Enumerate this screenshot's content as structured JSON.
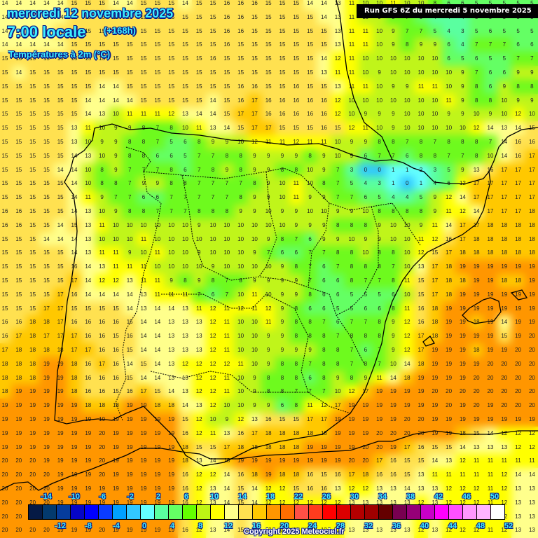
{
  "header": {
    "date": "mercredi 12 novembre 2025",
    "time": "7:00 locale",
    "offset": "(+168h)",
    "variable": "Températures à 2m (°C)",
    "run": "Run GFS 6Z du mercredi 5 novembre 2025"
  },
  "footer": {
    "copyright": "Copyright 2025 Meteociel.fr"
  },
  "legend": {
    "top_labels": [
      "-14",
      "-10",
      "-6",
      "-2",
      "2",
      "6",
      "10",
      "14",
      "18",
      "22",
      "26",
      "30",
      "34",
      "38",
      "42",
      "46",
      "50"
    ],
    "bottom_labels": [
      "-12",
      "-8",
      "-4",
      "0",
      "4",
      "8",
      "12",
      "16",
      "20",
      "24",
      "28",
      "32",
      "36",
      "40",
      "44",
      "48",
      "52"
    ],
    "colors": [
      "#051a45",
      "#033a6e",
      "#053c9c",
      "#0505c8",
      "#0000ff",
      "#0a3cff",
      "#00a0ff",
      "#32c8ff",
      "#64ffff",
      "#5affa0",
      "#64ff64",
      "#64ff00",
      "#bef514",
      "#ffff00",
      "#ffff8c",
      "#ffe150",
      "#ffc800",
      "#ff9600",
      "#ff6e00",
      "#ff5046",
      "#ff3c1e",
      "#ff0000",
      "#dc0000",
      "#b40000",
      "#a00000",
      "#640000",
      "#780050",
      "#960078",
      "#c800c8",
      "#ff00ff",
      "#ff50ff",
      "#ff96ff",
      "#ffb4ff",
      "#ffffff"
    ]
  },
  "scale": {
    "stops": [
      {
        "max": 4,
        "color": "#5affa0"
      },
      {
        "max": 6,
        "color": "#64ff64"
      },
      {
        "max": 8,
        "color": "#6efa1e"
      },
      {
        "max": 10,
        "color": "#c0f51a"
      },
      {
        "max": 12,
        "color": "#ffff00"
      },
      {
        "max": 14,
        "color": "#ffff8c"
      },
      {
        "max": 16,
        "color": "#ffe150"
      },
      {
        "max": 18,
        "color": "#ffc800"
      },
      {
        "max": 20,
        "color": "#ff9600"
      },
      {
        "max": 99,
        "color": "#ff6e00"
      }
    ],
    "cold": [
      {
        "max": 0,
        "color": "#32c8ff"
      },
      {
        "max": 2,
        "color": "#64ffff"
      }
    ]
  },
  "grid": {
    "origin_x": 0,
    "origin_y": 0,
    "step": 19.8,
    "rows": [
      "14 14 14 14 14 15 15 15 14 14 15 15 15 14 15 15 16 16 16 15 15 15 14 14 13 11 10 10 11 10 10 8 6 6 5 5 5 5 5",
      "14 14 14 14 14 15 15 15 15 15 15 15 15 15 15 15 16 16 15 15 15 15 15 14 13 11 10 9 8 7 5 4 4 4 5 5 5 5 5",
      "14 14 14 14 15 15 15 15 15 15 15 15 15 15 15 15 16 16 15 15 15 15 15 15 13 11 11 10 9 7 7 5 4 3 5 6 5 5 5",
      "14 14 14 14 14 15 15 15 15 15 15 15 15 15 15 15 16 15 15 15 15 15 15 15 13 11 11 10 9 8 9 9 6 4 7 7 7 6 6",
      "15 15 15 15 15 15 15 15 15 15 15 15 15 15 15 16 15 15 15 15 15 15 15 14 12 11 10 10 10 10 10 10 6 5 6 5 5 7 7",
      "15 14 15 15 15 15 15 15 15 15 15 15 15 15 15 15 15 15 15 15 15 15 15 13 11 11 10 9 10 10 10 10 10 9 7 6 6 9 9",
      "15 15 15 15 15 15 15 14 14 15 15 15 15 15 15 15 15 16 16 15 15 16 15 15 13 11 11 10 9 9 11 11 10 9 8 6 9 8 8",
      "15 15 15 15 15 15 14 14 14 14 15 15 15 15 15 14 15 16 17 16 16 16 16 16 12 10 10 10 10 10 10 10 11 9 8 8 10 9 9",
      "15 15 15 15 15 15 14 13 10 11 11 11 12 13 14 14 15 17 17 16 16 16 16 16 12 10 9 9 9 10 10 10 9 9 10 9 10 12 10",
      "15 15 15 15 15 13 11 10 9 9 8 7 8 10 11 13 14 15 17 17 15 15 15 16 15 12 11 10 9 10 10 10 10 10 12 14 13 14 15",
      "15 15 15 15 15 13 10 9 9 8 8 7 5 6 8 9 9 10 12 11 11 12 11 11 10 9 9 8 8 7 8 7 8 8 8 7 14 16 16",
      "15 15 15 15 15 14 13 10 9 8 8 6 6 5 7 7 8 8 9 9 9 9 8 9 10 9 6 7 7 6 8 8 7 7 8 10 14 16 17",
      "15 15 15 15 14 14 10 8 9 7 7 7 8 6 7 8 9 8 9 9 8 8 10 9 7 3 0 0 1 1 2 3 5 9 13 16 17 17 17",
      "15 15 15 15 15 14 10 8 8 7 9 9 8 8 7 7 7 7 8 9 10 11 10 8 7 5 4 3 1 0 1 4 6 12 17 17 17 17 17",
      "15 15 15 15 15 14 11 9 7 7 6 6 7 7 7 7 7 8 9 9 10 11 9 9 7 7 6 5 4 4 5 9 12 14 17 17 17 17 17",
      "16 16 15 15 15 14 13 10 9 8 8 7 7 7 8 8 8 9 9 10 9 9 10 10 9 9 10 8 8 8 8 9 11 12 14 17 17 17 18",
      "16 16 15 15 14 15 13 11 10 10 10 10 10 10 9 10 10 10 10 10 10 9 9 9 8 8 8 9 10 10 9 11 14 17 17 18 18 18 18",
      "15 15 15 14 14 14 13 10 10 10 11 10 10 10 10 10 10 10 10 9 8 7 6 9 9 10 9 9 10 10 11 12 16 17 18 18 18 18 18",
      "15 15 15 15 15 14 13 11 11 9 10 11 10 10 9 10 10 10 9 7 6 6 7 7 8 8 10 8 8 10 12 15 17 18 18 18 18 18 18",
      "15 15 15 15 15 16 14 13 11 11 11 10 10 10 10 9 10 10 10 10 9 8 7 6 7 8 8 8 7 10 13 17 18 19 19 19 19 19 19",
      "15 15 15 15 15 17 14 12 12 13 11 11 9 8 9 8 7 8 9 9 9 9 7 6 6 8 7 7 8 11 15 17 18 18 19 19 18 18 19",
      "15 15 15 15 17 16 14 14 14 14 13 11 11 11 7 6 7 10 11 10 9 9 8 6 6 5 5 5 6 10 15 17 18 19 19 19 19 19 19",
      "15 15 15 17 17 15 15 15 15 14 13 14 14 13 11 12 11 12 11 12 9 8 6 6 5 5 6 6 8 11 16 18 19 19 19 19 19 19 19",
      "16 16 18 18 17 16 16 16 16 15 14 14 13 13 13 12 11 10 10 11 9 8 8 7 6 7 7 8 9 12 16 18 19 19 18 19 14 19 19",
      "16 17 18 17 17 17 16 16 15 16 14 14 13 13 13 12 11 10 10 9 9 8 8 8 7 8 8 8 9 12 17 18 19 19 19 19 15 19 20",
      "17 18 18 18 18 17 17 16 16 15 14 14 13 13 13 12 11 10 10 9 9 9 9 8 8 7 6 7 9 12 17 19 19 19 18 19 19 20 20",
      "18 18 18 19 19 18 16 17 16 14 15 14 13 12 12 12 12 11 10 9 8 8 7 8 8 7 8 7 10 14 18 19 19 19 19 20 20 20 20",
      "18 18 18 19 19 18 16 16 16 15 14 14 13 13 12 12 11 10 9 8 8 8 6 8 9 8 9 11 14 18 19 19 19 19 20 20 20 20 20",
      "18 19 19 19 19 18 16 16 15 16 17 15 14 13 12 12 11 10 9 8 8 7 7 7 10 12 17 19 19 19 19 20 20 20 20 20 20 20 20",
      "19 19 19 19 19 19 18 18 18 19 19 18 18 14 13 12 10 10 9 9 6 8 11 12 17 19 19 19 19 19 19 19 20 19 20 19 20 20 20",
      "19 19 19 19 19 19 19 19 19 19 19 19 19 15 12 10 9 12 13 16 15 15 17 17 19 19 19 19 19 20 20 19 19 19 19 19 19 19 19",
      "19 19 19 19 19 19 19 20 19 19 19 19 19 16 12 11 13 16 17 18 18 18 18 18 19 19 19 20 20 20 20 19 19 18 15 14 12 12 12",
      "19 19 19 19 19 19 19 20 19 19 19 19 19 18 15 15 17 18 18 18 18 18 19 19 19 19 20 20 19 17 16 15 15 14 13 13 13 12 12",
      "20 20 20 19 19 19 19 20 19 19 19 19 19 18 13 14 18 19 19 19 19 19 19 19 19 20 20 17 16 15 15 14 13 12 11 11 11 11 11",
      "20 20 20 20 19 19 19 20 19 19 19 19 19 16 12 12 14 16 18 19 18 18 16 15 16 17 18 16 16 15 13 11 11 11 11 11 12 14 14",
      "20 20 20 20 19 19 19 19 19 19 19 19 19 16 12 13 14 15 14 12 12 15 16 16 13 12 12 13 13 14 13 13 12 12 12 11 12 13 13",
      "20 20 20 20 19 19 19 19 19 19 19 19 19 16 12 13 14 15 14 12 12 12 12 12 12 13 13 13 13 13 12 13 12 12 12 11 12 13 13",
      "20 20 20 20 19 19 19 20 19 19 19 19 19 16 12 13 14 15 14 12 12 12 12 12 12 13 13 13 13 13 12 13 12 12 12 11 12 13 13",
      "20 20 20 20 19 19 19 20 19 19 19 19 19 16 12 13 14 15 14 12 12 12 12 12 12 13 13 13 13 13 12 13 12 12 12 11 12 13 13"
    ]
  }
}
